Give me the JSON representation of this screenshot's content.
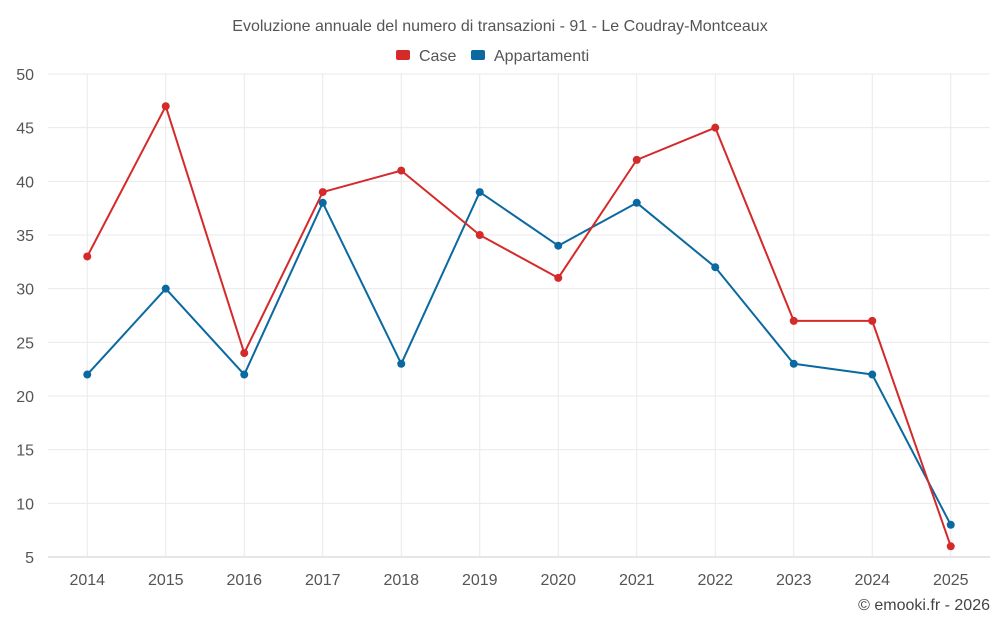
{
  "chart_data": {
    "type": "line",
    "title": "Evoluzione annuale del numero di transazioni - 91 - Le Coudray-Montceaux",
    "categories": [
      "2014",
      "2015",
      "2016",
      "2017",
      "2018",
      "2019",
      "2020",
      "2021",
      "2022",
      "2023",
      "2024",
      "2025"
    ],
    "series": [
      {
        "name": "Case",
        "color": "#d42a2a",
        "values": [
          33,
          47,
          24,
          39,
          41,
          35,
          31,
          42,
          45,
          27,
          27,
          6
        ]
      },
      {
        "name": "Appartamenti",
        "color": "#0a69a0",
        "values": [
          22,
          30,
          22,
          38,
          23,
          39,
          34,
          38,
          32,
          23,
          22,
          8
        ]
      }
    ],
    "ylim": [
      5,
      50
    ],
    "yticks": [
      5,
      10,
      15,
      20,
      25,
      30,
      35,
      40,
      45,
      50
    ],
    "grid": true,
    "legend": "top-center",
    "xlabel": "",
    "ylabel": ""
  },
  "credit": "© emooki.fr - 2026"
}
